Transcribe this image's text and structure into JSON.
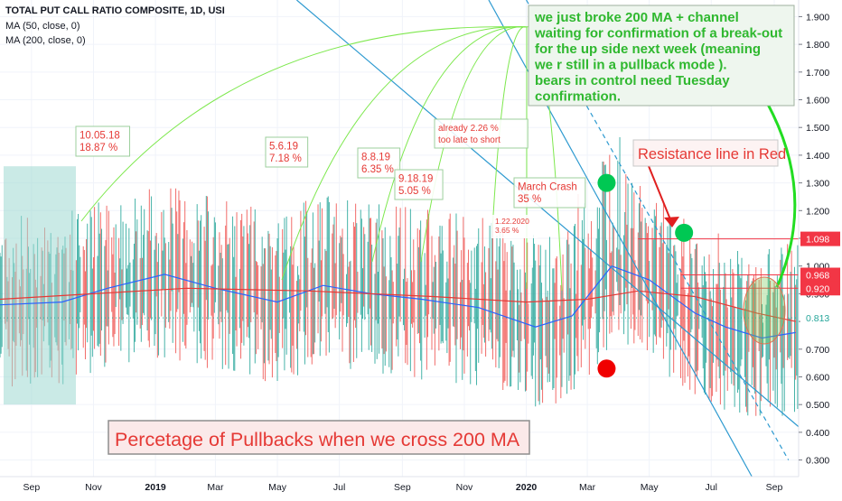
{
  "header": {
    "title": "TOTAL PUT CALL RATIO COMPOSITE, 1D, USI",
    "ma50_label": "MA (50, close, 0)",
    "ma200_label": "MA (200, close, 0)"
  },
  "chart_data": {
    "type": "bar",
    "title": "TOTAL PUT CALL RATIO COMPOSITE, 1D, USI",
    "ylim": [
      0.24,
      1.96
    ],
    "y_ticks": [
      "1.900",
      "1.800",
      "1.700",
      "1.600",
      "1.500",
      "1.400",
      "1.300",
      "1.200",
      "1.100",
      "1.000",
      "0.900",
      "0.800",
      "0.700",
      "0.600",
      "0.500",
      "0.400",
      "0.300"
    ],
    "x_ticks": [
      "Sep",
      "Nov",
      "2019",
      "Mar",
      "May",
      "Jul",
      "Sep",
      "Nov",
      "2020",
      "Mar",
      "May",
      "Jul",
      "Sep"
    ],
    "x_range": [
      "2018-08-01",
      "2020-09-25"
    ],
    "grid": true,
    "legend_position": "top-left",
    "last_value": 0.813,
    "price_labels": [
      {
        "value": 1.098,
        "text": "1.098",
        "color": "#f23645"
      },
      {
        "value": 0.968,
        "text": "0.968",
        "color": "#f23645"
      },
      {
        "value": 0.92,
        "text": "0.920",
        "color": "#f23645"
      },
      {
        "value": 0.813,
        "text": "0.813",
        "color": "#26a69a"
      }
    ],
    "series": [
      {
        "name": "MA (50, close, 0)",
        "color": "#2962ff",
        "points": [
          [
            "2018-08-01",
            0.86
          ],
          [
            "2018-10-01",
            0.87
          ],
          [
            "2018-11-15",
            0.92
          ],
          [
            "2019-01-10",
            0.97
          ],
          [
            "2019-03-01",
            0.92
          ],
          [
            "2019-05-01",
            0.87
          ],
          [
            "2019-06-15",
            0.93
          ],
          [
            "2019-08-01",
            0.9
          ],
          [
            "2019-09-20",
            0.88
          ],
          [
            "2019-11-15",
            0.85
          ],
          [
            "2020-01-10",
            0.78
          ],
          [
            "2020-02-15",
            0.82
          ],
          [
            "2020-03-25",
            1.0
          ],
          [
            "2020-05-01",
            0.95
          ],
          [
            "2020-06-15",
            0.83
          ],
          [
            "2020-07-15",
            0.78
          ],
          [
            "2020-08-20",
            0.74
          ],
          [
            "2020-09-22",
            0.76
          ]
        ]
      },
      {
        "name": "MA (200, close, 0)",
        "color": "#e53935",
        "points": [
          [
            "2018-08-01",
            0.88
          ],
          [
            "2018-11-01",
            0.9
          ],
          [
            "2019-02-01",
            0.92
          ],
          [
            "2019-06-01",
            0.91
          ],
          [
            "2019-10-01",
            0.89
          ],
          [
            "2020-01-01",
            0.87
          ],
          [
            "2020-03-01",
            0.88
          ],
          [
            "2020-04-20",
            0.91
          ],
          [
            "2020-06-15",
            0.89
          ],
          [
            "2020-08-15",
            0.83
          ],
          [
            "2020-09-22",
            0.8
          ]
        ]
      }
    ],
    "reference_lines": [
      {
        "label": "1.098",
        "value": 1.098,
        "start": "2020-04-20",
        "color": "#f23645"
      },
      {
        "label": "0.968",
        "value": 0.968,
        "start": "2020-06-01",
        "color": "#f23645"
      },
      {
        "label": "0.920",
        "value": 0.92,
        "start": "2020-06-01",
        "color": "#f23645"
      }
    ],
    "channel_lines": [
      {
        "from": [
          "2019-05-20",
          1.96
        ],
        "to": [
          "2020-09-25",
          0.42
        ],
        "style": "solid"
      },
      {
        "from": [
          "2020-01-01",
          1.96
        ],
        "to": [
          "2020-09-15",
          0.3
        ],
        "style": "dashed"
      },
      {
        "from": [
          "2019-11-25",
          1.96
        ],
        "to": [
          "2020-08-10",
          0.24
        ],
        "style": "solid"
      }
    ],
    "markers": [
      {
        "date": "2020-03-20",
        "value": 1.3,
        "color": "#00c853"
      },
      {
        "date": "2020-05-05",
        "value": 1.12,
        "color": "#00c853"
      },
      {
        "date": "2020-03-20",
        "value": 0.63,
        "color": "#f00000"
      }
    ],
    "annotations": [
      {
        "lines": [
          "10.05.18",
          "18.87 %"
        ],
        "date": "2018-10-05"
      },
      {
        "lines": [
          "5.6.19",
          "7.18 %"
        ],
        "date": "2019-05-06"
      },
      {
        "lines": [
          "8.8.19",
          "6.35 %"
        ],
        "date": "2019-08-08"
      },
      {
        "lines": [
          "9.18.19",
          "5.05 %"
        ],
        "date": "2019-09-18"
      },
      {
        "lines": [
          "already 2.26 %",
          "too late to short"
        ],
        "date": "2019-12-15"
      },
      {
        "lines": [
          "1.22.2020",
          "3.65 %"
        ],
        "date": "2020-01-22"
      },
      {
        "lines": [
          "March Crash",
          "35 %"
        ],
        "date": "2020-02-25"
      }
    ],
    "callout": [
      "we just broke 200 MA + channel",
      " waiting for confirmation of a break-out",
      " for the up side next week (meaning",
      "we r still in a pullback mode ).",
      "bears in control need Tuesday",
      "confirmation."
    ],
    "resistance_label": "Resistance line in Red",
    "pullback_label": "Percetage of Pullbacks when we cross 200 MA",
    "colors": {
      "up": "#26a69a",
      "down": "#ef5350",
      "callout_text": "#2fb82f",
      "arc": "#7ee84e",
      "channel": "#2e9ad0"
    }
  }
}
